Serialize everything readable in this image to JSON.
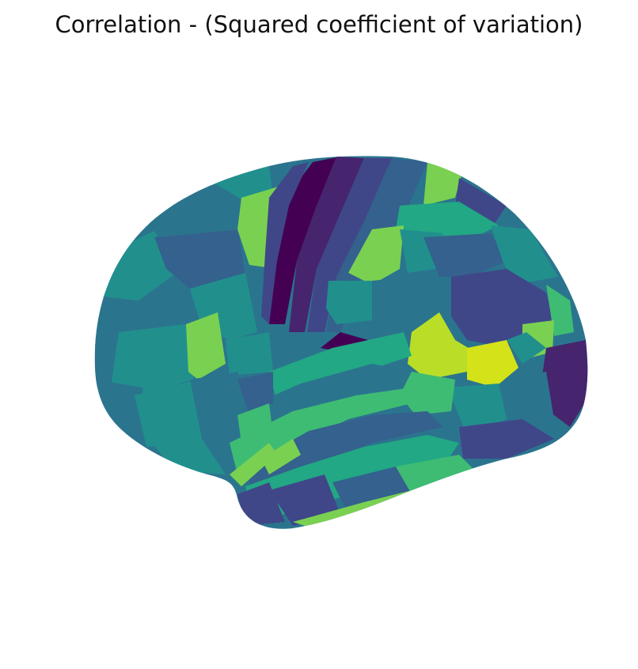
{
  "figure": {
    "title": "Correlation - (Squared coefficient of variation)"
  },
  "surface": {
    "view": "lateral",
    "hemisphere": "left",
    "colormap": "viridis",
    "colors": {
      "dark_purple": "#440154",
      "deep_indigo": "#46256e",
      "indigo": "#3f4788",
      "slate_blue": "#34618d",
      "teal_blue": "#2b748e",
      "teal": "#21908d",
      "sea_green": "#22a884",
      "green": "#3fbc73",
      "light_green": "#7ad151",
      "lime": "#bade28",
      "yellow_lime": "#d4e21a"
    }
  }
}
